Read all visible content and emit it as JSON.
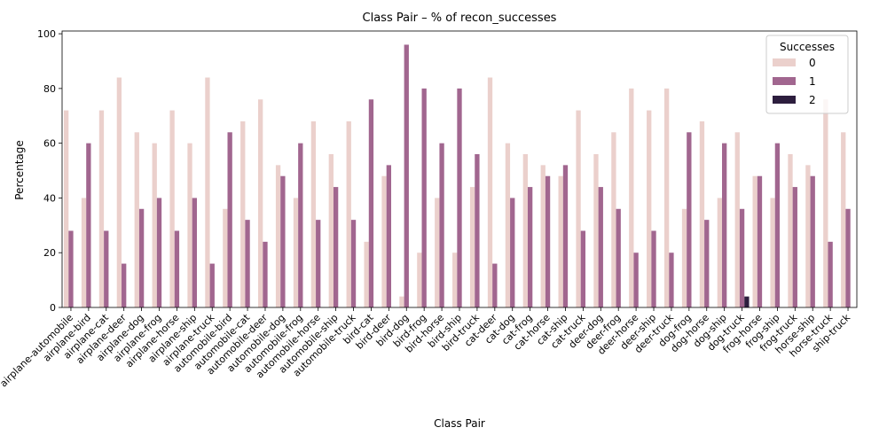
{
  "chart_data": {
    "type": "bar",
    "title": "Class Pair – % of recon_successes",
    "xlabel": "Class Pair",
    "ylabel": "Percentage",
    "ylim": [
      0,
      101
    ],
    "yticks": [
      0,
      20,
      40,
      60,
      80,
      100
    ],
    "legend": {
      "title": "Successes",
      "placement": "top-right"
    },
    "categories": [
      "airplane-automobile",
      "airplane-bird",
      "airplane-cat",
      "airplane-deer",
      "airplane-dog",
      "airplane-frog",
      "airplane-horse",
      "airplane-ship",
      "airplane-truck",
      "automobile-bird",
      "automobile-cat",
      "automobile-deer",
      "automobile-dog",
      "automobile-frog",
      "automobile-horse",
      "automobile-ship",
      "automobile-truck",
      "bird-cat",
      "bird-deer",
      "bird-dog",
      "bird-frog",
      "bird-horse",
      "bird-ship",
      "bird-truck",
      "cat-deer",
      "cat-dog",
      "cat-frog",
      "cat-horse",
      "cat-ship",
      "cat-truck",
      "deer-dog",
      "deer-frog",
      "deer-horse",
      "deer-ship",
      "deer-truck",
      "dog-frog",
      "dog-horse",
      "dog-ship",
      "dog-truck",
      "frog-horse",
      "frog-ship",
      "frog-truck",
      "horse-ship",
      "horse-truck",
      "ship-truck"
    ],
    "series": [
      {
        "name": "0",
        "color": "#ebd0cc",
        "values": [
          72,
          40,
          72,
          84,
          64,
          60,
          72,
          60,
          84,
          36,
          68,
          76,
          52,
          40,
          68,
          56,
          68,
          24,
          48,
          4,
          20,
          40,
          20,
          44,
          84,
          60,
          56,
          52,
          48,
          72,
          56,
          64,
          80,
          72,
          80,
          36,
          68,
          40,
          64,
          48,
          40,
          56,
          52,
          76,
          64
        ]
      },
      {
        "name": "1",
        "color": "#a1668f",
        "values": [
          28,
          60,
          28,
          16,
          36,
          40,
          28,
          40,
          16,
          64,
          32,
          24,
          48,
          60,
          32,
          44,
          32,
          76,
          52,
          96,
          80,
          60,
          80,
          56,
          16,
          40,
          44,
          48,
          52,
          28,
          44,
          36,
          20,
          28,
          20,
          64,
          32,
          60,
          36,
          48,
          60,
          44,
          48,
          24,
          36
        ]
      },
      {
        "name": "2",
        "color": "#2d1e3e",
        "values": [
          0,
          0,
          0,
          0,
          0,
          0,
          0,
          0,
          0,
          0,
          0,
          0,
          0,
          0,
          0,
          0,
          0,
          0,
          0,
          0,
          0,
          0,
          0,
          0,
          0,
          0,
          0,
          0,
          0,
          0,
          0,
          0,
          0,
          0,
          0,
          0,
          0,
          0,
          4,
          0,
          0,
          0,
          0,
          0,
          0
        ]
      }
    ]
  }
}
